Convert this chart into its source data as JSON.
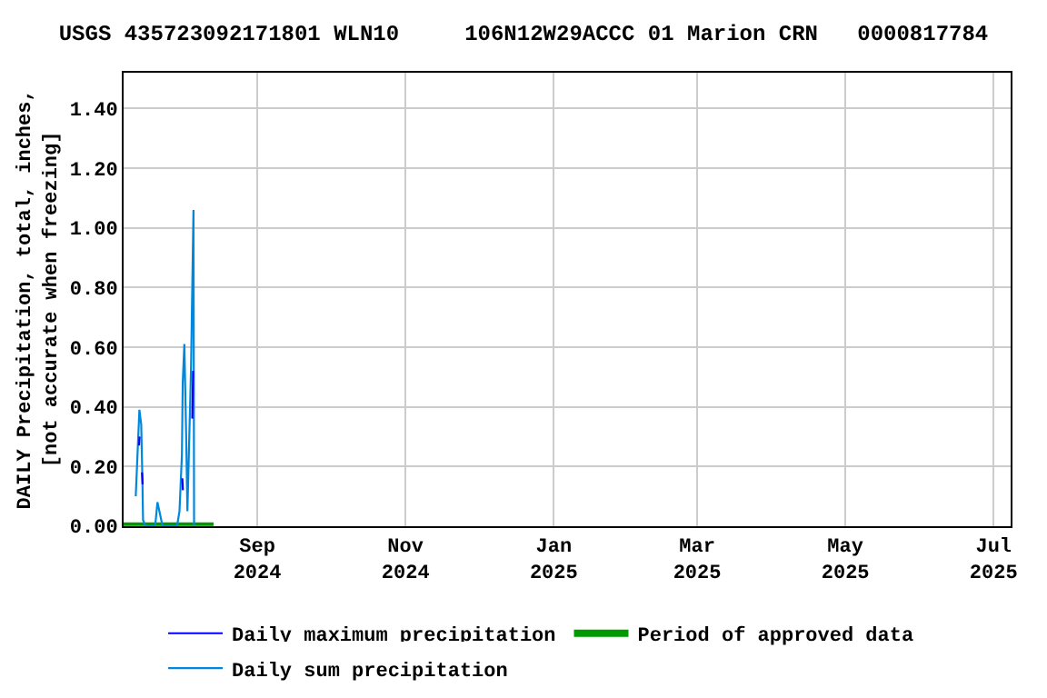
{
  "chart_data": {
    "type": "line",
    "title": "USGS 435723092171801 WLN10     106N12W29ACCC 01 Marion CRN   0000817784",
    "ylabel": "DAILY Precipitation, total, inches,\n[not accurate when freezing]",
    "series": [
      {
        "name": "Daily maximum precipitation",
        "color": "#0000ff",
        "x": [
          "2024-07-14T08:00",
          "2024-07-14T14:00",
          null,
          "2024-07-15T14:00",
          "2024-07-15T20:00",
          null,
          "2024-08-01T04:00",
          "2024-08-01T10:00",
          null,
          "2024-08-05T06:00",
          "2024-08-05T14:00"
        ],
        "values": [
          0.27,
          0.3,
          null,
          0.18,
          0.14,
          null,
          0.16,
          0.12,
          null,
          0.36,
          0.52
        ]
      },
      {
        "name": "Period of approved data",
        "color": "#009900",
        "x": [
          "2024-07-08",
          "2024-08-14"
        ],
        "values": [
          0,
          0
        ]
      },
      {
        "name": "Daily sum precipitation",
        "color": "#0088dd",
        "x": [
          "2024-07-13",
          "2024-07-14T12:00",
          "2024-07-15T06:00",
          "2024-07-15T18:00",
          "2024-07-16",
          "2024-07-17",
          "2024-07-21",
          "2024-07-21T22:00",
          "2024-07-23",
          "2024-07-24",
          "2024-07-30",
          "2024-07-31",
          "2024-08-01",
          "2024-08-01T08:00",
          "2024-08-02",
          "2024-08-02T18:00",
          "2024-08-03T06:00",
          "2024-08-04T18:00",
          "2024-08-05T18:00",
          "2024-08-06"
        ],
        "values": [
          0.1,
          0.39,
          0.34,
          0.15,
          0.02,
          0,
          0,
          0.08,
          0.04,
          0,
          0,
          0.05,
          0.24,
          0.48,
          0.61,
          0.3,
          0.05,
          0.53,
          1.06,
          0
        ]
      }
    ],
    "xlim": [
      "2024-07-08",
      "2025-07-08"
    ],
    "xticks": [
      {
        "value": "2024-09-01",
        "label": "Sep\n2024"
      },
      {
        "value": "2024-11-01",
        "label": "Nov\n2024"
      },
      {
        "value": "2025-01-01",
        "label": "Jan\n2025"
      },
      {
        "value": "2025-03-01",
        "label": "Mar\n2025"
      },
      {
        "value": "2025-05-01",
        "label": "May\n2025"
      },
      {
        "value": "2025-07-01",
        "label": "Jul\n2025"
      }
    ],
    "ylim": [
      0,
      1.52
    ],
    "yticks": [
      {
        "value": 0,
        "label": "0.00"
      },
      {
        "value": 0.2,
        "label": "0.20"
      },
      {
        "value": 0.4,
        "label": "0.40"
      },
      {
        "value": 0.6,
        "label": "0.60"
      },
      {
        "value": 0.8,
        "label": "0.80"
      },
      {
        "value": 1.0,
        "label": "1.00"
      },
      {
        "value": 1.2,
        "label": "1.20"
      },
      {
        "value": 1.4,
        "label": "1.40"
      }
    ],
    "grid": true,
    "legend": "bottom",
    "marker": "none",
    "line_style": "solid"
  }
}
